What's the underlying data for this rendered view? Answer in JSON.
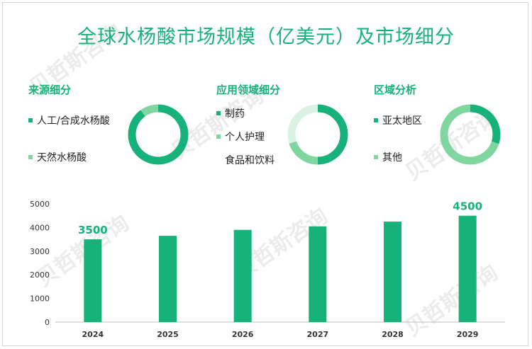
{
  "title": "全球水杨酸市场规模（亿美元）及市场细分",
  "palette": {
    "dark": "#17b17a",
    "light": "#7fd69e",
    "pale": "#d9f2e3"
  },
  "sections": {
    "source": {
      "title": "来源细分",
      "legend": [
        "人工/合成水杨酸",
        "天然水杨酸"
      ],
      "colors": [
        "#17b17a",
        "#7fd69e"
      ],
      "shares": [
        0.9,
        0.1
      ]
    },
    "application": {
      "title": "应用领域细分",
      "legend": [
        "制药",
        "个人护理",
        "食品和饮料"
      ],
      "colors": [
        "#17b17a",
        "#7fd69e",
        "#d9f2e3"
      ],
      "shares": [
        0.5,
        0.2,
        0.3
      ]
    },
    "region": {
      "title": "区域分析",
      "legend": [
        "亚太地区",
        "其他"
      ],
      "colors": [
        "#17b17a",
        "#7fd69e"
      ],
      "shares": [
        0.3,
        0.7
      ]
    }
  },
  "chart_data": {
    "type": "bar",
    "categories": [
      "2024",
      "2025",
      "2026",
      "2027",
      "2028",
      "2029"
    ],
    "values": [
      3500,
      3650,
      3900,
      4050,
      4250,
      4500
    ],
    "value_labels": [
      "3500",
      "",
      "",
      "",
      "",
      "4500"
    ],
    "ylim": [
      0,
      5000
    ],
    "yticks": [
      "0",
      "1000",
      "2000",
      "3000",
      "4000",
      "5000"
    ],
    "grid": false,
    "color": "#17b17a"
  }
}
